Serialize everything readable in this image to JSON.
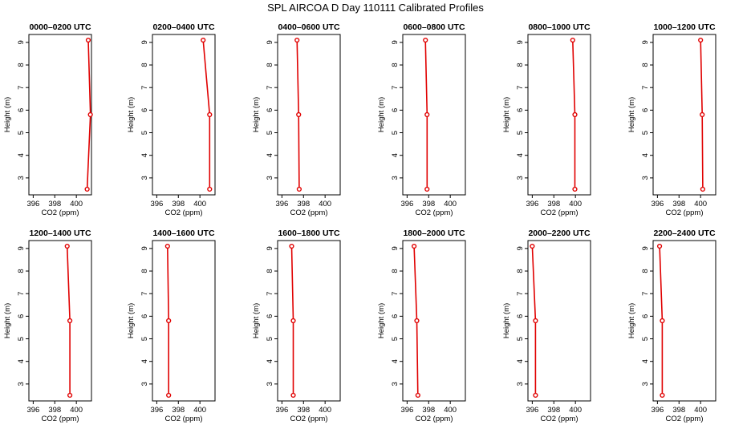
{
  "figure": {
    "title": "SPL AIRCOA D  Day 110111  Calibrated Profiles"
  },
  "colors": {
    "series": "#e00000",
    "axis": "#000000"
  },
  "chart_data": [
    {
      "type": "line",
      "title": "0000–0200 UTC",
      "xlabel": "CO2 (ppm)",
      "ylabel": "Height (m)",
      "xlim": [
        395.6,
        401.4
      ],
      "ylim": [
        2.25,
        9.35
      ],
      "xticks": [
        396,
        398,
        400
      ],
      "yticks": [
        3,
        4,
        5,
        6,
        7,
        8,
        9
      ],
      "grid": false,
      "x": [
        401.0,
        401.3,
        401.1
      ],
      "y": [
        2.5,
        5.8,
        9.1
      ]
    },
    {
      "type": "line",
      "title": "0200–0400 UTC",
      "xlabel": "CO2 (ppm)",
      "ylabel": "Height (m)",
      "xlim": [
        395.6,
        401.4
      ],
      "ylim": [
        2.25,
        9.35
      ],
      "xticks": [
        396,
        398,
        400
      ],
      "yticks": [
        3,
        4,
        5,
        6,
        7,
        8,
        9
      ],
      "grid": false,
      "x": [
        400.9,
        400.9,
        400.3
      ],
      "y": [
        2.5,
        5.8,
        9.1
      ]
    },
    {
      "type": "line",
      "title": "0400–0600 UTC",
      "xlabel": "CO2 (ppm)",
      "ylabel": "Height (m)",
      "xlim": [
        395.6,
        401.4
      ],
      "ylim": [
        2.25,
        9.35
      ],
      "xticks": [
        396,
        398,
        400
      ],
      "yticks": [
        3,
        4,
        5,
        6,
        7,
        8,
        9
      ],
      "grid": false,
      "x": [
        397.6,
        397.55,
        397.4
      ],
      "y": [
        2.5,
        5.8,
        9.1
      ]
    },
    {
      "type": "line",
      "title": "0600–0800 UTC",
      "xlabel": "CO2 (ppm)",
      "ylabel": "Height (m)",
      "xlim": [
        395.6,
        401.4
      ],
      "ylim": [
        2.25,
        9.35
      ],
      "xticks": [
        396,
        398,
        400
      ],
      "yticks": [
        3,
        4,
        5,
        6,
        7,
        8,
        9
      ],
      "grid": false,
      "x": [
        397.85,
        397.85,
        397.7
      ],
      "y": [
        2.5,
        5.8,
        9.1
      ]
    },
    {
      "type": "line",
      "title": "0800–1000 UTC",
      "xlabel": "CO2 (ppm)",
      "ylabel": "Height (m)",
      "xlim": [
        395.6,
        401.4
      ],
      "ylim": [
        2.25,
        9.35
      ],
      "xticks": [
        396,
        398,
        400
      ],
      "yticks": [
        3,
        4,
        5,
        6,
        7,
        8,
        9
      ],
      "grid": false,
      "x": [
        399.95,
        399.95,
        399.75
      ],
      "y": [
        2.5,
        5.8,
        9.1
      ]
    },
    {
      "type": "line",
      "title": "1000–1200 UTC",
      "xlabel": "CO2 (ppm)",
      "ylabel": "Height (m)",
      "xlim": [
        395.6,
        401.4
      ],
      "ylim": [
        2.25,
        9.35
      ],
      "xticks": [
        396,
        398,
        400
      ],
      "yticks": [
        3,
        4,
        5,
        6,
        7,
        8,
        9
      ],
      "grid": false,
      "x": [
        400.2,
        400.15,
        400.0
      ],
      "y": [
        2.5,
        5.8,
        9.1
      ]
    },
    {
      "type": "line",
      "title": "1200–1400 UTC",
      "xlabel": "CO2 (ppm)",
      "ylabel": "Height (m)",
      "xlim": [
        395.6,
        401.4
      ],
      "ylim": [
        2.25,
        9.35
      ],
      "xticks": [
        396,
        398,
        400
      ],
      "yticks": [
        3,
        4,
        5,
        6,
        7,
        8,
        9
      ],
      "grid": false,
      "x": [
        399.4,
        399.4,
        399.15
      ],
      "y": [
        2.5,
        5.8,
        9.1
      ]
    },
    {
      "type": "line",
      "title": "1400–1600 UTC",
      "xlabel": "CO2 (ppm)",
      "ylabel": "Height (m)",
      "xlim": [
        395.6,
        401.4
      ],
      "ylim": [
        2.25,
        9.35
      ],
      "xticks": [
        396,
        398,
        400
      ],
      "yticks": [
        3,
        4,
        5,
        6,
        7,
        8,
        9
      ],
      "grid": false,
      "x": [
        397.1,
        397.1,
        397.0
      ],
      "y": [
        2.5,
        5.8,
        9.1
      ]
    },
    {
      "type": "line",
      "title": "1600–1800 UTC",
      "xlabel": "CO2 (ppm)",
      "ylabel": "Height (m)",
      "xlim": [
        395.6,
        401.4
      ],
      "ylim": [
        2.25,
        9.35
      ],
      "xticks": [
        396,
        398,
        400
      ],
      "yticks": [
        3,
        4,
        5,
        6,
        7,
        8,
        9
      ],
      "grid": false,
      "x": [
        397.05,
        397.05,
        396.9
      ],
      "y": [
        2.5,
        5.8,
        9.1
      ]
    },
    {
      "type": "line",
      "title": "1800–2000 UTC",
      "xlabel": "CO2 (ppm)",
      "ylabel": "Height (m)",
      "xlim": [
        395.6,
        401.4
      ],
      "ylim": [
        2.25,
        9.35
      ],
      "xticks": [
        396,
        398,
        400
      ],
      "yticks": [
        3,
        4,
        5,
        6,
        7,
        8,
        9
      ],
      "grid": false,
      "x": [
        397.0,
        396.9,
        396.65
      ],
      "y": [
        2.5,
        5.8,
        9.1
      ]
    },
    {
      "type": "line",
      "title": "2000–2200 UTC",
      "xlabel": "CO2 (ppm)",
      "ylabel": "Height (m)",
      "xlim": [
        395.6,
        401.4
      ],
      "ylim": [
        2.25,
        9.35
      ],
      "xticks": [
        396,
        398,
        400
      ],
      "yticks": [
        3,
        4,
        5,
        6,
        7,
        8,
        9
      ],
      "grid": false,
      "x": [
        396.3,
        396.3,
        396.0
      ],
      "y": [
        2.5,
        5.8,
        9.1
      ]
    },
    {
      "type": "line",
      "title": "2200–2400 UTC",
      "xlabel": "CO2 (ppm)",
      "ylabel": "Height (m)",
      "xlim": [
        395.6,
        401.4
      ],
      "ylim": [
        2.25,
        9.35
      ],
      "xticks": [
        396,
        398,
        400
      ],
      "yticks": [
        3,
        4,
        5,
        6,
        7,
        8,
        9
      ],
      "grid": false,
      "x": [
        396.45,
        396.45,
        396.2
      ],
      "y": [
        2.5,
        5.8,
        9.1
      ]
    }
  ]
}
